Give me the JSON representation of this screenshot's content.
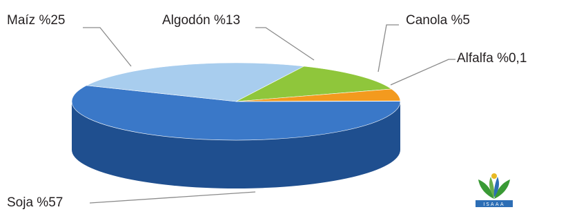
{
  "chart_data": {
    "type": "pie",
    "style": "3d",
    "title": "",
    "slices": [
      {
        "name": "Soja",
        "value": 57,
        "label": "Soja %57",
        "color": "#3a78c8",
        "side_color": "#1f4f8f"
      },
      {
        "name": "Maíz",
        "value": 25,
        "label": "Maíz %25",
        "color": "#a8cdee",
        "side_color": "#6f9ec8"
      },
      {
        "name": "Algodón",
        "value": 13,
        "label": "Algodón %13",
        "color": "#8fc63b",
        "side_color": "#5e8f24"
      },
      {
        "name": "Canola",
        "value": 5,
        "label": "Canola %5",
        "color": "#f39a1e",
        "side_color": "#b86e0c"
      },
      {
        "name": "Alfalfa",
        "value": 0.1,
        "label": "Alfalfa %0,1",
        "color": "#6e7f2e",
        "side_color": "#4a5720"
      }
    ],
    "legend": "none"
  },
  "logo": {
    "name": "isaaa-logo",
    "text": "ISAAA",
    "colors": {
      "green": "#3a9a35",
      "blue": "#2d6eb5",
      "yellow": "#e8b923"
    }
  }
}
